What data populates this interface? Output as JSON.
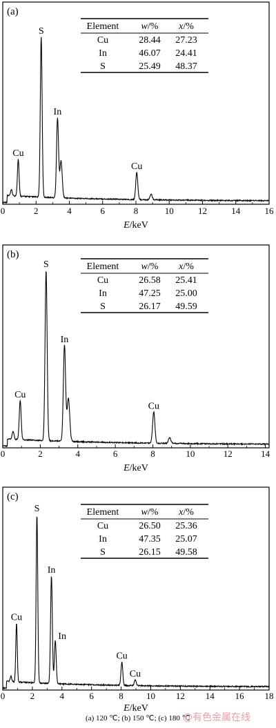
{
  "caption": "(a) 120 ℃; (b) 150 ℃; (c) 180 ℃",
  "watermark": "@有色金属在线",
  "colors": {
    "line": "#000000",
    "background": "#ffffff"
  },
  "chart_data": [
    {
      "type": "line",
      "panel_label": "(a)",
      "xlabel_italic": "E",
      "xlabel_unit": "/keV",
      "xlim": [
        0,
        16
      ],
      "xticks": [
        0,
        2,
        4,
        6,
        8,
        10,
        12,
        14,
        16
      ],
      "ylim": [
        0,
        100
      ],
      "baseline": 3,
      "peaks": [
        {
          "x": 0.52,
          "h": 3,
          "w": 0.05
        },
        {
          "x": 0.93,
          "h": 19,
          "w": 0.05
        },
        {
          "x": 2.31,
          "h": 82,
          "w": 0.055
        },
        {
          "x": 3.29,
          "h": 41,
          "w": 0.06
        },
        {
          "x": 3.5,
          "h": 19,
          "w": 0.07
        },
        {
          "x": 8.05,
          "h": 14,
          "w": 0.06
        },
        {
          "x": 8.91,
          "h": 3,
          "w": 0.06
        }
      ],
      "peak_labels": [
        {
          "text": "Cu",
          "x": 0.93,
          "h": 19
        },
        {
          "text": "S",
          "x": 2.31,
          "h": 82
        },
        {
          "text": "In",
          "x": 3.29,
          "h": 41
        },
        {
          "text": "Cu",
          "x": 8.05,
          "h": 14
        }
      ],
      "table": {
        "headers": [
          "Element",
          "w/%",
          "x/%"
        ],
        "rows": [
          [
            "Cu",
            "28.44",
            "27.23"
          ],
          [
            "In",
            "46.07",
            "24.41"
          ],
          [
            "S",
            "25.49",
            "48.37"
          ]
        ]
      }
    },
    {
      "type": "line",
      "panel_label": "(b)",
      "xlabel_italic": "E",
      "xlabel_unit": "/keV",
      "xlim": [
        0,
        14.2
      ],
      "xticks": [
        0,
        2,
        4,
        6,
        8,
        10,
        12,
        14
      ],
      "ylim": [
        0,
        100
      ],
      "baseline": 3,
      "peaks": [
        {
          "x": 0.55,
          "h": 4,
          "w": 0.05
        },
        {
          "x": 0.93,
          "h": 20,
          "w": 0.05
        },
        {
          "x": 2.31,
          "h": 87,
          "w": 0.055
        },
        {
          "x": 3.29,
          "h": 49,
          "w": 0.06
        },
        {
          "x": 3.5,
          "h": 22,
          "w": 0.07
        },
        {
          "x": 8.05,
          "h": 16,
          "w": 0.06
        },
        {
          "x": 8.9,
          "h": 3,
          "w": 0.06
        }
      ],
      "peak_labels": [
        {
          "text": "Cu",
          "x": 0.93,
          "h": 20
        },
        {
          "text": "S",
          "x": 2.31,
          "h": 87
        },
        {
          "text": "In",
          "x": 3.29,
          "h": 49
        },
        {
          "text": "Cu",
          "x": 8.05,
          "h": 16
        }
      ],
      "table": {
        "headers": [
          "Element",
          "w/%",
          "x/%"
        ],
        "rows": [
          [
            "Cu",
            "26.58",
            "25.41"
          ],
          [
            "In",
            "47.25",
            "25.00"
          ],
          [
            "S",
            "26.17",
            "49.59"
          ]
        ]
      }
    },
    {
      "type": "line",
      "panel_label": "(c)",
      "xlabel_italic": "E",
      "xlabel_unit": "/keV",
      "xlim": [
        0,
        18
      ],
      "xticks": [
        0,
        2,
        4,
        6,
        8,
        10,
        12,
        14,
        16,
        18
      ],
      "ylim": [
        0,
        100
      ],
      "baseline": 3,
      "peaks": [
        {
          "x": 0.55,
          "h": 3,
          "w": 0.05
        },
        {
          "x": 0.93,
          "h": 30,
          "w": 0.05
        },
        {
          "x": 2.31,
          "h": 86,
          "w": 0.055
        },
        {
          "x": 3.29,
          "h": 55,
          "w": 0.06
        },
        {
          "x": 3.55,
          "h": 22,
          "w": 0.06
        },
        {
          "x": 8.05,
          "h": 12,
          "w": 0.06
        },
        {
          "x": 8.95,
          "h": 3,
          "w": 0.06
        }
      ],
      "peak_labels": [
        {
          "text": "Cu",
          "x": 0.93,
          "h": 30
        },
        {
          "text": "S",
          "x": 2.31,
          "h": 86
        },
        {
          "text": "In",
          "x": 3.29,
          "h": 55
        },
        {
          "text": "In",
          "x": 3.55,
          "h": 22
        },
        {
          "text": "Cu",
          "x": 8.05,
          "h": 12
        },
        {
          "text": "Cu",
          "x": 8.95,
          "h": 3
        }
      ],
      "table": {
        "headers": [
          "Element",
          "w/%",
          "x/%"
        ],
        "rows": [
          [
            "Cu",
            "26.50",
            "25.36"
          ],
          [
            "In",
            "47.35",
            "25.07"
          ],
          [
            "S",
            "26.15",
            "49.58"
          ]
        ]
      }
    }
  ]
}
